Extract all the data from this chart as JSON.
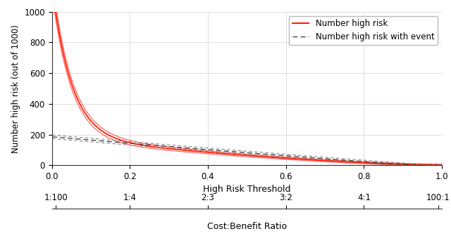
{
  "xlim": [
    0.0,
    1.0
  ],
  "ylim": [
    0,
    1000
  ],
  "yticks": [
    0,
    200,
    400,
    600,
    800,
    1000
  ],
  "xticks_main": [
    0.0,
    0.2,
    0.4,
    0.6,
    0.8,
    1.0
  ],
  "xtick_labels_main": [
    "0.0",
    "0.2",
    "0.4",
    "0.6",
    "0.8",
    "1.0"
  ],
  "xlabel_main": "High Risk Threshold",
  "xtick_labels_bottom": [
    "1:100",
    "1:4",
    "2:3",
    "3:2",
    "4:1",
    "100:1"
  ],
  "xlabel_bottom": "Cost:Benefit Ratio",
  "ylabel": "Number high risk (out of 1000)",
  "legend_labels": [
    "Number high risk",
    "Number high risk with event"
  ],
  "red_line_color": "#FF2200",
  "red_ci_color": "#FF6666",
  "black_dashed_color": "#444444",
  "black_ci_color": "#888888",
  "bg_color": "#FFFFFF",
  "grid_color": "#DDDDDD",
  "num_points": 1000,
  "cb_positions": [
    0.0099,
    0.2,
    0.4,
    0.6,
    0.8,
    0.9901
  ]
}
